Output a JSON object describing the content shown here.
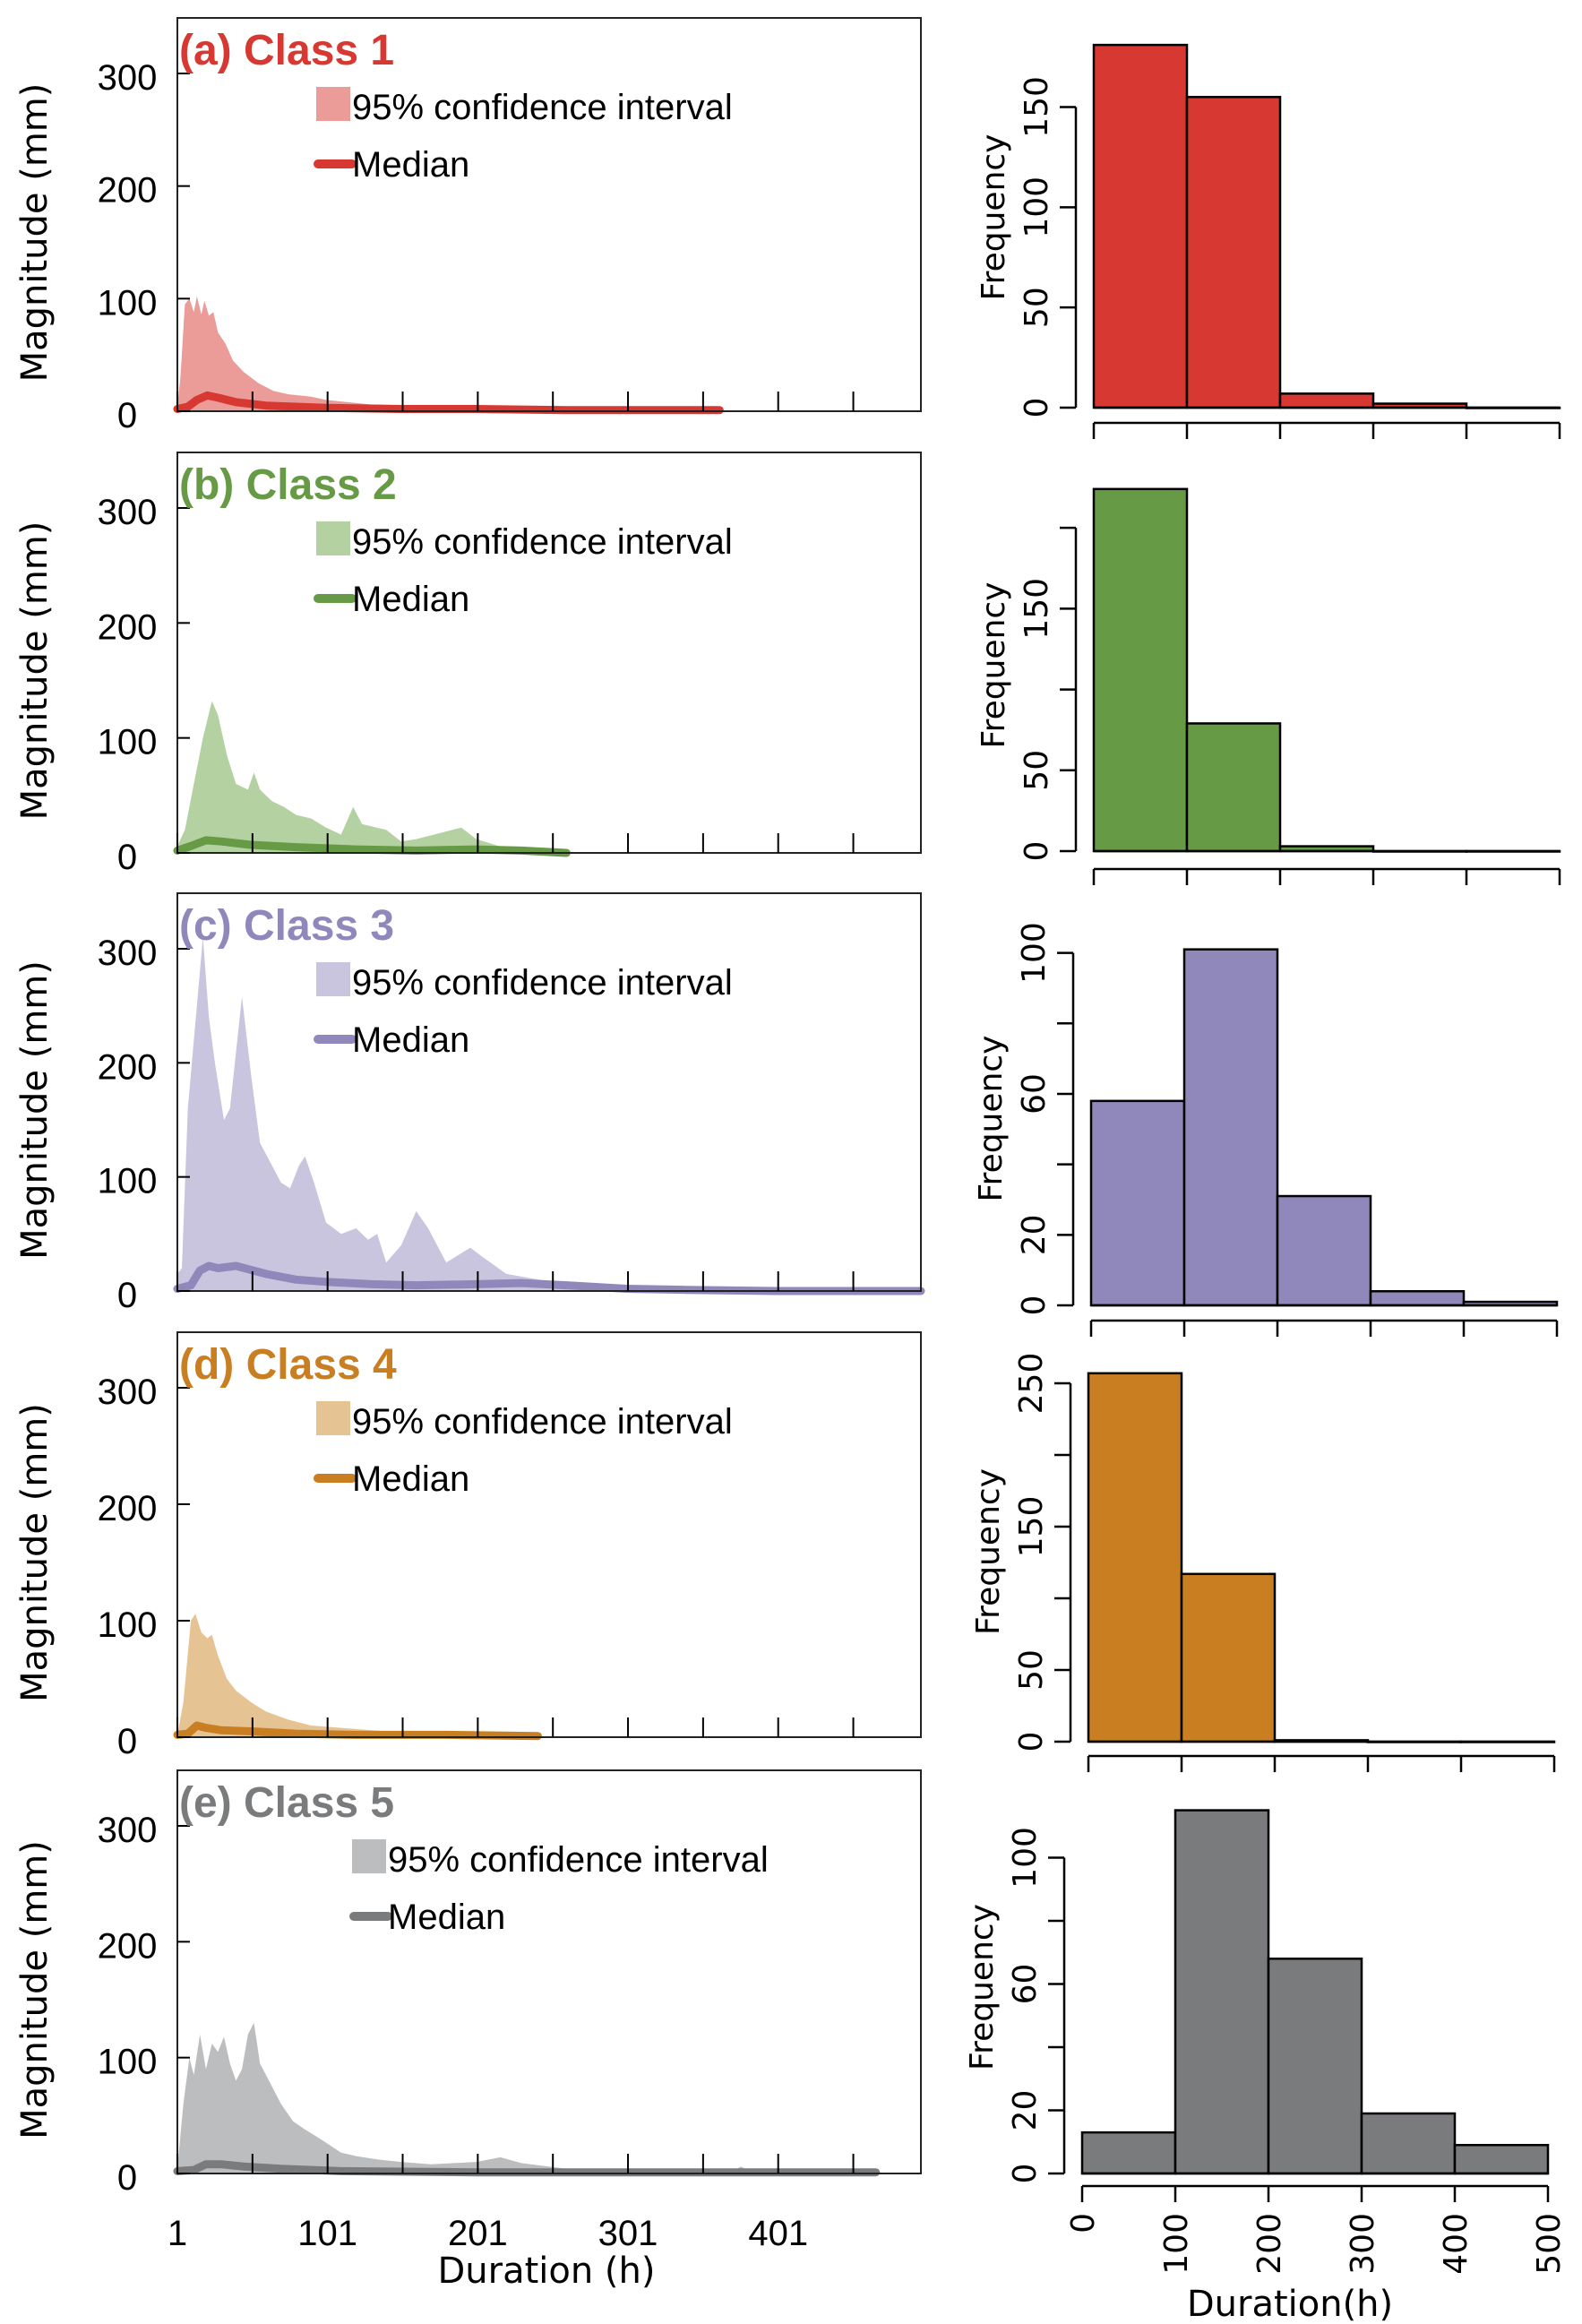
{
  "figure": {
    "left_ylabel": "Magnitude (mm)",
    "left_xlabel": "Duration (h)",
    "right_ylabel": "Frequency",
    "right_xlabel": "Duration(h)",
    "legend_ci": "95% confidence interval",
    "legend_median": "Median"
  },
  "chart_data": [
    {
      "type": "area",
      "title": "(a) Class 1",
      "color": "#d73832",
      "ci_color": "#eb9c98",
      "xlabel": "Duration (h)",
      "ylabel": "Magnitude (mm)",
      "xlim": [
        1,
        496
      ],
      "ylim": [
        0,
        300
      ],
      "yticks": [
        0,
        100,
        200,
        300
      ],
      "xticks": [
        1,
        51,
        101,
        151,
        201,
        251,
        301,
        351,
        401,
        451
      ],
      "xtick_labels": [
        "1",
        "101",
        "201",
        "301",
        "401"
      ],
      "legend": [
        "95% confidence interval",
        "Median"
      ],
      "ci_upper": [
        [
          1,
          5
        ],
        [
          3,
          30
        ],
        [
          6,
          95
        ],
        [
          9,
          100
        ],
        [
          12,
          88
        ],
        [
          14,
          102
        ],
        [
          17,
          86
        ],
        [
          19,
          98
        ],
        [
          22,
          85
        ],
        [
          25,
          88
        ],
        [
          28,
          70
        ],
        [
          33,
          60
        ],
        [
          38,
          45
        ],
        [
          45,
          35
        ],
        [
          55,
          25
        ],
        [
          65,
          18
        ],
        [
          75,
          15
        ],
        [
          90,
          13
        ],
        [
          100,
          10
        ],
        [
          130,
          6
        ],
        [
          160,
          5
        ],
        [
          200,
          4
        ],
        [
          250,
          3
        ],
        [
          300,
          2
        ],
        [
          360,
          1
        ]
      ],
      "median": [
        [
          1,
          2
        ],
        [
          8,
          4
        ],
        [
          14,
          10
        ],
        [
          21,
          14
        ],
        [
          28,
          12
        ],
        [
          40,
          8
        ],
        [
          60,
          5
        ],
        [
          100,
          3
        ],
        [
          150,
          2
        ],
        [
          200,
          2
        ],
        [
          260,
          1
        ],
        [
          320,
          1
        ],
        [
          362,
          1
        ]
      ]
    },
    {
      "type": "area",
      "title": "(b) Class 2",
      "color": "#669a45",
      "ci_color": "#b3d1a1",
      "xlabel": "Duration (h)",
      "ylabel": "Magnitude (mm)",
      "xlim": [
        1,
        496
      ],
      "ylim": [
        0,
        300
      ],
      "yticks": [
        0,
        100,
        200,
        300
      ],
      "legend": [
        "95% confidence interval",
        "Median"
      ],
      "ci_upper": [
        [
          1,
          6
        ],
        [
          6,
          20
        ],
        [
          12,
          60
        ],
        [
          18,
          100
        ],
        [
          24,
          132
        ],
        [
          28,
          120
        ],
        [
          34,
          85
        ],
        [
          40,
          60
        ],
        [
          48,
          55
        ],
        [
          52,
          70
        ],
        [
          56,
          55
        ],
        [
          64,
          45
        ],
        [
          72,
          40
        ],
        [
          80,
          33
        ],
        [
          90,
          30
        ],
        [
          100,
          22
        ],
        [
          110,
          16
        ],
        [
          118,
          40
        ],
        [
          124,
          25
        ],
        [
          140,
          20
        ],
        [
          150,
          10
        ],
        [
          160,
          12
        ],
        [
          190,
          22
        ],
        [
          200,
          12
        ],
        [
          220,
          4
        ],
        [
          260,
          1
        ]
      ],
      "median": [
        [
          1,
          2
        ],
        [
          10,
          6
        ],
        [
          20,
          11
        ],
        [
          30,
          10
        ],
        [
          50,
          7
        ],
        [
          80,
          5
        ],
        [
          120,
          3
        ],
        [
          160,
          2
        ],
        [
          200,
          3
        ],
        [
          230,
          2
        ],
        [
          260,
          0
        ]
      ]
    },
    {
      "type": "area",
      "title": "(c) Class 3",
      "color": "#9088bb",
      "ci_color": "#c9c5df",
      "xlabel": "Duration (h)",
      "ylabel": "Magnitude (mm)",
      "xlim": [
        1,
        496
      ],
      "ylim": [
        0,
        300
      ],
      "yticks": [
        0,
        100,
        200,
        300
      ],
      "legend": [
        "95% confidence interval",
        "Median"
      ],
      "ci_upper": [
        [
          1,
          15
        ],
        [
          4,
          20
        ],
        [
          8,
          160
        ],
        [
          12,
          220
        ],
        [
          18,
          310
        ],
        [
          22,
          240
        ],
        [
          26,
          200
        ],
        [
          32,
          150
        ],
        [
          36,
          160
        ],
        [
          44,
          258
        ],
        [
          50,
          190
        ],
        [
          56,
          130
        ],
        [
          62,
          115
        ],
        [
          70,
          95
        ],
        [
          76,
          90
        ],
        [
          82,
          110
        ],
        [
          86,
          118
        ],
        [
          92,
          95
        ],
        [
          100,
          60
        ],
        [
          110,
          50
        ],
        [
          120,
          55
        ],
        [
          128,
          45
        ],
        [
          134,
          50
        ],
        [
          140,
          25
        ],
        [
          150,
          40
        ],
        [
          160,
          70
        ],
        [
          168,
          55
        ],
        [
          180,
          25
        ],
        [
          196,
          38
        ],
        [
          204,
          30
        ],
        [
          220,
          15
        ],
        [
          250,
          8
        ],
        [
          280,
          4
        ],
        [
          320,
          2
        ],
        [
          400,
          1
        ],
        [
          496,
          0
        ]
      ],
      "median": [
        [
          1,
          2
        ],
        [
          10,
          5
        ],
        [
          16,
          18
        ],
        [
          22,
          22
        ],
        [
          28,
          20
        ],
        [
          40,
          22
        ],
        [
          60,
          15
        ],
        [
          80,
          10
        ],
        [
          100,
          8
        ],
        [
          130,
          6
        ],
        [
          160,
          5
        ],
        [
          200,
          6
        ],
        [
          230,
          7
        ],
        [
          260,
          5
        ],
        [
          300,
          2
        ],
        [
          340,
          1
        ],
        [
          400,
          0
        ],
        [
          496,
          0
        ]
      ]
    },
    {
      "type": "area",
      "title": "(d) Class 4",
      "color": "#c97e22",
      "ci_color": "#e6c392",
      "xlabel": "Duration (h)",
      "ylabel": "Magnitude (mm)",
      "xlim": [
        1,
        496
      ],
      "ylim": [
        0,
        300
      ],
      "yticks": [
        0,
        100,
        200,
        300
      ],
      "legend": [
        "95% confidence interval",
        "Median"
      ],
      "ci_upper": [
        [
          1,
          2
        ],
        [
          5,
          30
        ],
        [
          10,
          100
        ],
        [
          13,
          106
        ],
        [
          17,
          90
        ],
        [
          21,
          85
        ],
        [
          24,
          88
        ],
        [
          28,
          70
        ],
        [
          34,
          50
        ],
        [
          40,
          40
        ],
        [
          50,
          30
        ],
        [
          60,
          22
        ],
        [
          75,
          15
        ],
        [
          90,
          10
        ],
        [
          110,
          8
        ],
        [
          140,
          5
        ],
        [
          180,
          3
        ],
        [
          220,
          2
        ],
        [
          241,
          1
        ]
      ],
      "median": [
        [
          1,
          2
        ],
        [
          8,
          3
        ],
        [
          14,
          10
        ],
        [
          20,
          8
        ],
        [
          30,
          6
        ],
        [
          50,
          5
        ],
        [
          80,
          3
        ],
        [
          120,
          2
        ],
        [
          180,
          2
        ],
        [
          241,
          1
        ]
      ]
    },
    {
      "type": "area",
      "title": "(e) Class 5",
      "color": "#7a7b7d",
      "ci_color": "#bcbdbe",
      "xlabel": "Duration (h)",
      "ylabel": "Magnitude (mm)",
      "xlim": [
        1,
        496
      ],
      "ylim": [
        0,
        300
      ],
      "yticks": [
        0,
        100,
        200,
        300
      ],
      "xticks": [
        1,
        51,
        101,
        151,
        201,
        251,
        301,
        351,
        401,
        451
      ],
      "xtick_labels": [
        "1",
        "101",
        "201",
        "301",
        "401"
      ],
      "legend": [
        "95% confidence interval",
        "Median"
      ],
      "ci_upper": [
        [
          1,
          5
        ],
        [
          5,
          60
        ],
        [
          9,
          100
        ],
        [
          12,
          85
        ],
        [
          16,
          120
        ],
        [
          20,
          90
        ],
        [
          24,
          112
        ],
        [
          28,
          105
        ],
        [
          32,
          118
        ],
        [
          36,
          95
        ],
        [
          40,
          80
        ],
        [
          44,
          90
        ],
        [
          48,
          120
        ],
        [
          52,
          130
        ],
        [
          56,
          95
        ],
        [
          62,
          80
        ],
        [
          70,
          60
        ],
        [
          78,
          45
        ],
        [
          86,
          38
        ],
        [
          96,
          30
        ],
        [
          110,
          18
        ],
        [
          120,
          15
        ],
        [
          135,
          12
        ],
        [
          150,
          10
        ],
        [
          170,
          8
        ],
        [
          200,
          10
        ],
        [
          216,
          14
        ],
        [
          230,
          9
        ],
        [
          260,
          4
        ],
        [
          300,
          1
        ],
        [
          370,
          1
        ],
        [
          376,
          6
        ],
        [
          384,
          1
        ],
        [
          466,
          0
        ]
      ],
      "median": [
        [
          1,
          2
        ],
        [
          12,
          3
        ],
        [
          20,
          8
        ],
        [
          30,
          8
        ],
        [
          45,
          6
        ],
        [
          70,
          4
        ],
        [
          110,
          2
        ],
        [
          200,
          1
        ],
        [
          300,
          1
        ],
        [
          466,
          1
        ]
      ]
    },
    {
      "type": "bar",
      "title": "Class 1 duration histogram",
      "color": "#d73832",
      "xlabel": "",
      "ylabel": "Frequency",
      "bins": [
        0,
        100,
        200,
        300,
        400,
        500
      ],
      "values": [
        181,
        155,
        7,
        2,
        0
      ],
      "ylim": [
        0,
        190
      ],
      "yticks": [
        0,
        50,
        100,
        150
      ],
      "ytick_labels": [
        "0",
        "50",
        "100",
        "150"
      ]
    },
    {
      "type": "bar",
      "title": "Class 2 duration histogram",
      "color": "#669a45",
      "xlabel": "",
      "ylabel": "Frequency",
      "bins": [
        0,
        100,
        200,
        300,
        400,
        500
      ],
      "values": [
        224,
        79,
        3,
        0,
        0
      ],
      "ylim": [
        0,
        230
      ],
      "yticks": [
        0,
        50,
        100,
        150,
        200
      ],
      "ytick_labels": [
        "0",
        "50",
        "",
        "150",
        ""
      ]
    },
    {
      "type": "bar",
      "title": "Class 3 duration histogram",
      "color": "#9088bb",
      "xlabel": "",
      "ylabel": "Frequency",
      "bins": [
        0,
        100,
        200,
        300,
        400,
        500
      ],
      "values": [
        58,
        101,
        31,
        4,
        1
      ],
      "ylim": [
        0,
        106
      ],
      "yticks": [
        0,
        20,
        40,
        60,
        80,
        100
      ],
      "ytick_labels": [
        "0",
        "20",
        "",
        "60",
        "",
        "100"
      ]
    },
    {
      "type": "bar",
      "title": "Class 4 duration histogram",
      "color": "#c97e22",
      "xlabel": "",
      "ylabel": "Frequency",
      "bins": [
        0,
        100,
        200,
        300,
        400,
        500
      ],
      "values": [
        257,
        117,
        1,
        0,
        0
      ],
      "ylim": [
        0,
        265
      ],
      "yticks": [
        0,
        50,
        100,
        150,
        200,
        250
      ],
      "ytick_labels": [
        "0",
        "50",
        "",
        "150",
        "",
        "250"
      ]
    },
    {
      "type": "bar",
      "title": "Class 5 duration histogram",
      "color": "#7a7b7d",
      "xlabel": "Duration(h)",
      "ylabel": "Frequency",
      "bins": [
        0,
        100,
        200,
        300,
        400,
        500
      ],
      "values": [
        13,
        115,
        68,
        19,
        9
      ],
      "ylim": [
        0,
        118
      ],
      "yticks": [
        0,
        20,
        40,
        60,
        80,
        100
      ],
      "ytick_labels": [
        "0",
        "20",
        "",
        "60",
        "",
        "100"
      ],
      "xtick_labels": [
        "0",
        "100",
        "200",
        "300",
        "400",
        "500"
      ]
    }
  ]
}
